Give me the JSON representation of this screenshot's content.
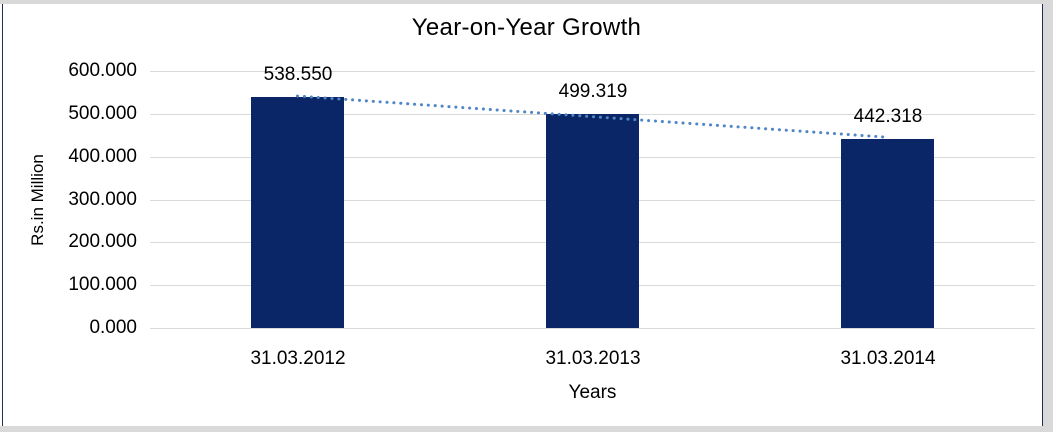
{
  "page": {
    "margin_color": "#d9d9d9",
    "canvas_color": "#ffffff",
    "border_color": "#1c2f55"
  },
  "chart_data": {
    "type": "bar",
    "title": "Year-on-Year Growth",
    "xlabel": "Years",
    "ylabel": "Rs.in Million",
    "categories": [
      "31.03.2012",
      "31.03.2013",
      "31.03.2014"
    ],
    "values": [
      538.55,
      499.319,
      442.318
    ],
    "data_labels": [
      "538.550",
      "499.319",
      "442.318"
    ],
    "ylim": [
      0,
      600
    ],
    "y_tick_values": [
      0,
      100,
      200,
      300,
      400,
      500,
      600
    ],
    "y_tick_labels": [
      "0.000",
      "100.000",
      "200.000",
      "300.000",
      "400.000",
      "500.000",
      "600.000"
    ],
    "grid": "horizontal",
    "legend": "none",
    "bar_color": "#0a2666",
    "gridline_color": "#d9d9d9",
    "text_color": "#000000",
    "trendline": {
      "type": "linear",
      "style": "dotted",
      "color": "#4f86c6"
    }
  }
}
